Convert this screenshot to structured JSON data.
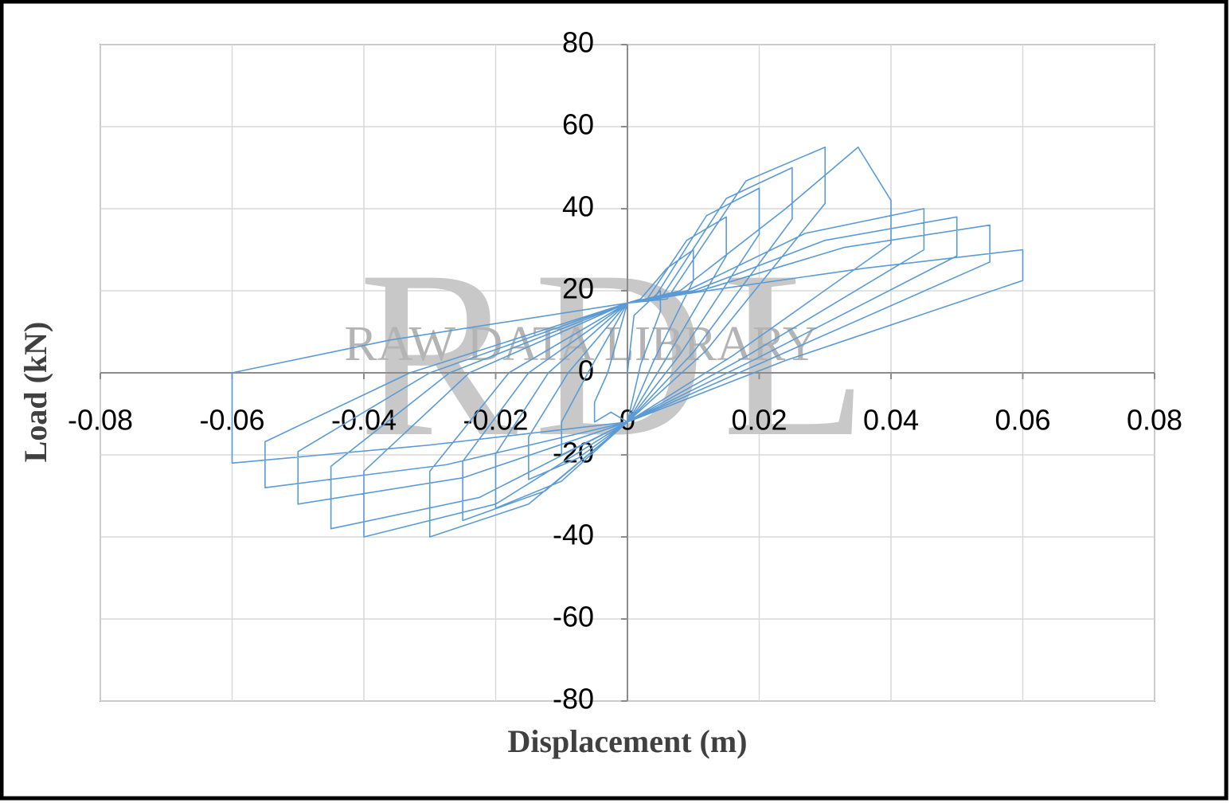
{
  "chart_data": {
    "type": "line",
    "x_label": "Displacement  (m)",
    "y_label": "Load (kN)",
    "watermark": {
      "logo": "RDL",
      "text": "RAW DATA LIBRARY"
    },
    "color": "#5b9bd5",
    "grid": true,
    "xlim": [
      -0.08,
      0.08
    ],
    "ylim": [
      -80,
      80
    ],
    "xticks": [
      -0.08,
      -0.06,
      -0.04,
      -0.02,
      0,
      0.02,
      0.04,
      0.06,
      0.08
    ],
    "yticks": [
      -80,
      -60,
      -40,
      -20,
      0,
      20,
      40,
      60,
      80
    ],
    "x": [
      0,
      0.001,
      0.003,
      0.005,
      0.005,
      0.002,
      0,
      -0.0025,
      -0.005,
      -0.005,
      -0.003,
      0,
      0.002,
      0.006,
      0.01,
      0.01,
      0.004,
      0,
      -0.005,
      -0.01,
      -0.01,
      -0.006,
      0,
      0.003,
      0.009,
      0.015,
      0.015,
      0.006,
      0,
      -0.0075,
      -0.015,
      -0.015,
      -0.009,
      0,
      0.004,
      0.012,
      0.02,
      0.02,
      0.008,
      0,
      -0.01,
      -0.02,
      -0.02,
      -0.012,
      0,
      0.005,
      0.015,
      0.025,
      0.025,
      0.01,
      0,
      -0.0125,
      -0.025,
      -0.025,
      -0.015,
      0,
      0.006,
      0.018,
      0.03,
      0.03,
      0.012,
      0,
      -0.015,
      -0.03,
      -0.03,
      -0.018,
      0,
      0.008,
      0.024,
      0.035,
      0.04,
      0.04,
      0.016,
      0,
      -0.02,
      -0.04,
      -0.04,
      -0.024,
      0,
      0.009,
      0.027,
      0.045,
      0.045,
      0.018,
      0,
      -0.0225,
      -0.045,
      -0.045,
      -0.027,
      0,
      0.01,
      0.03,
      0.05,
      0.05,
      0.02,
      0,
      -0.025,
      -0.05,
      -0.05,
      -0.03,
      0,
      0.011,
      0.033,
      0.055,
      0.055,
      0.022,
      0,
      -0.0275,
      -0.055,
      -0.055,
      -0.033,
      0,
      0.012,
      0.036,
      0.06,
      0.06,
      0.024,
      0,
      -0.03,
      -0.06,
      -0.06,
      -0.036,
      0
    ],
    "values": [
      0,
      14,
      17,
      20,
      15,
      2,
      -12,
      -9.6,
      -12,
      -7.2,
      0,
      17,
      18,
      25.5,
      30,
      22.5,
      3,
      -12,
      -16,
      -20,
      -12,
      0,
      17,
      18,
      32.3,
      38,
      28.5,
      3.8,
      -12,
      -20.8,
      -26,
      -15.6,
      0,
      17,
      18,
      38.3,
      45,
      33.8,
      4.5,
      -12,
      -26.4,
      -33,
      -19.8,
      0,
      17,
      18,
      42.5,
      50,
      37.5,
      5,
      -12,
      -28.8,
      -36,
      -21.6,
      0,
      17,
      18,
      46.8,
      55,
      41.3,
      5.5,
      -12,
      -32,
      -40,
      -24,
      0,
      17,
      20,
      40,
      55,
      42,
      31.5,
      4.2,
      -12,
      -32,
      -40,
      -24,
      0,
      17,
      20,
      34,
      40,
      30,
      4,
      -12,
      -30.4,
      -38,
      -22.8,
      0,
      17,
      20,
      32.3,
      38,
      28.5,
      3.8,
      -12,
      -25.6,
      -32,
      -19.2,
      0,
      17,
      20,
      30.6,
      36,
      27,
      3.6,
      -12,
      -22.4,
      -28,
      -16.8,
      0,
      17,
      20,
      25.5,
      30,
      22.5,
      3,
      -12,
      -17.6,
      -22,
      0,
      8,
      17
    ]
  }
}
